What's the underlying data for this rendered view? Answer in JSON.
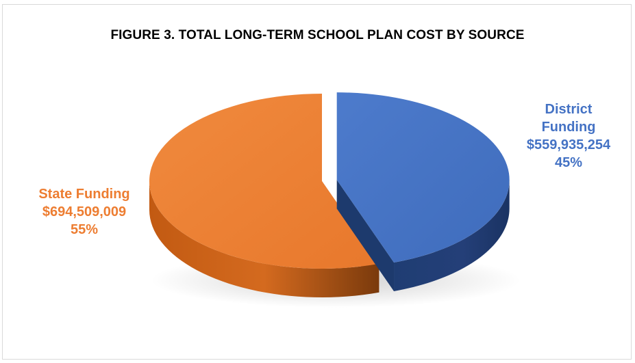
{
  "chart_data": {
    "type": "pie",
    "title": "FIGURE 3. TOTAL LONG-TERM SCHOOL PLAN COST BY SOURCE",
    "slices": [
      {
        "label_lines": [
          "District",
          "Funding"
        ],
        "value": 559935254,
        "value_text": "$559,935,254",
        "percent_text": "45%",
        "color": "#4472c4",
        "exploded": true
      },
      {
        "label_lines": [
          "State Funding"
        ],
        "value": 694509009,
        "value_text": "$694,509,009",
        "percent_text": "55%",
        "color": "#ed7d31",
        "exploded": false
      }
    ],
    "style": "3d-exploded"
  }
}
